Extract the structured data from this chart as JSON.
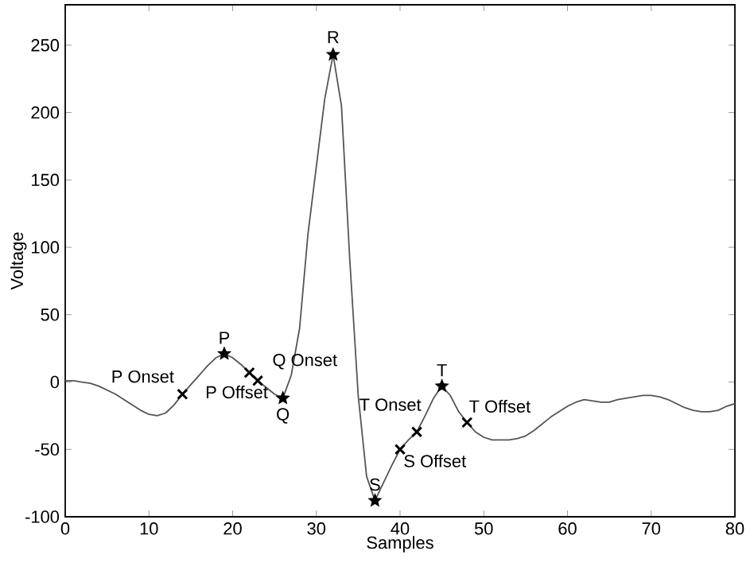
{
  "chart_data": {
    "type": "line",
    "xlabel": "Samples",
    "ylabel": "Voltage",
    "xlim": [
      0,
      80
    ],
    "ylim": [
      -100,
      280
    ],
    "xticks": [
      0,
      10,
      20,
      30,
      40,
      50,
      60,
      70,
      80
    ],
    "yticks": [
      -100,
      -50,
      0,
      50,
      100,
      150,
      200,
      250
    ],
    "grid": false,
    "series": [
      {
        "color": "#555555",
        "line_style": "solid",
        "x": [
          0,
          1,
          2,
          3,
          4,
          5,
          6,
          7,
          8,
          9,
          10,
          11,
          12,
          13,
          14,
          15,
          16,
          17,
          18,
          19,
          20,
          21,
          22,
          23,
          24,
          25,
          26,
          27,
          28,
          29,
          30,
          31,
          32,
          33,
          34,
          35,
          36,
          37,
          38,
          39,
          40,
          41,
          42,
          43,
          44,
          45,
          46,
          47,
          48,
          49,
          50,
          51,
          52,
          53,
          54,
          55,
          56,
          57,
          58,
          59,
          60,
          61,
          62,
          63,
          64,
          65,
          66,
          67,
          68,
          69,
          70,
          71,
          72,
          73,
          74,
          75,
          76,
          77,
          78,
          79,
          80
        ],
        "values": [
          1,
          1,
          0,
          -1,
          -3,
          -6,
          -9,
          -13,
          -17,
          -21,
          -24,
          -25,
          -23,
          -17,
          -9,
          -2,
          5,
          12,
          18,
          21,
          18,
          13,
          7,
          1,
          -4,
          -9,
          -12,
          5,
          40,
          110,
          160,
          210,
          243,
          205,
          90,
          -10,
          -70,
          -88,
          -75,
          -62,
          -50,
          -43,
          -37,
          -25,
          -12,
          -3,
          -10,
          -22,
          -30,
          -37,
          -41,
          -43,
          -43,
          -43,
          -42,
          -40,
          -36,
          -31,
          -26,
          -22,
          -18,
          -15,
          -13,
          -14,
          -15,
          -15,
          -13,
          -12,
          -11,
          -10,
          -10,
          -11,
          -13,
          -16,
          -19,
          -21,
          -22,
          -22,
          -21,
          -18,
          -16
        ]
      },
      {
        "type": "scatter",
        "marker": "star",
        "color": "#000000",
        "x": [
          19,
          26,
          32,
          37,
          45
        ],
        "values": [
          21,
          -12,
          243,
          -88,
          -3
        ]
      },
      {
        "type": "scatter",
        "marker": "cross",
        "color": "#000000",
        "x": [
          14,
          22,
          23,
          40,
          42,
          48
        ],
        "values": [
          -9,
          7,
          1,
          -50,
          -37,
          -30
        ]
      }
    ],
    "annotations": [
      {
        "text": "P Onset",
        "x": 14,
        "y": -9
      },
      {
        "text": "P",
        "x": 19,
        "y": 21
      },
      {
        "text": "P Offset",
        "x": 22,
        "y": 7
      },
      {
        "text": "Q Onset",
        "x": 23,
        "y": 1
      },
      {
        "text": "Q",
        "x": 26,
        "y": -12
      },
      {
        "text": "R",
        "x": 32,
        "y": 243
      },
      {
        "text": "S",
        "x": 37,
        "y": -88
      },
      {
        "text": "S Offset",
        "x": 40,
        "y": -50
      },
      {
        "text": "T Onset",
        "x": 42,
        "y": -37
      },
      {
        "text": "T",
        "x": 45,
        "y": -3
      },
      {
        "text": "T Offset",
        "x": 48,
        "y": -30
      }
    ]
  }
}
